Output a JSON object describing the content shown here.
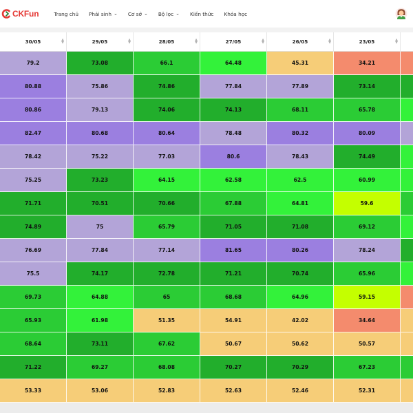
{
  "brand": {
    "name": "CKFun",
    "accent": "#e53935"
  },
  "nav": {
    "items": [
      {
        "label": "Trang chủ",
        "dropdown": false
      },
      {
        "label": "Phái sinh",
        "dropdown": true
      },
      {
        "label": "Cơ sở",
        "dropdown": true
      },
      {
        "label": "Bộ lọc",
        "dropdown": true
      },
      {
        "label": "Kiến thức",
        "dropdown": false
      },
      {
        "label": "Khóa học",
        "dropdown": false
      }
    ],
    "chevron": "⌄",
    "avatar_icon": "user-avatar-icon"
  },
  "table": {
    "columns": [
      "30/05",
      "29/05",
      "28/05",
      "27/05",
      "26/05",
      "23/05",
      ""
    ],
    "sort_icon": "⇅",
    "palette": {
      "purple": "#9b7fe0",
      "lavender": "#b3a4d8",
      "dark_green": "#22ae2c",
      "mid_green": "#2bcc35",
      "bright_green": "#33f23a",
      "lime": "#c4ff00",
      "sand": "#f6cd78",
      "salmon": "#f48b6d"
    },
    "rows": [
      {
        "values": [
          "79.2",
          "73.08",
          "66.1",
          "64.48",
          "45.31",
          "34.21",
          ""
        ],
        "colors": [
          "lavender",
          "dark_green",
          "mid_green",
          "bright_green",
          "sand",
          "salmon",
          "salmon"
        ]
      },
      {
        "values": [
          "80.88",
          "75.86",
          "74.86",
          "77.84",
          "77.89",
          "73.14",
          ""
        ],
        "colors": [
          "purple",
          "lavender",
          "dark_green",
          "lavender",
          "lavender",
          "dark_green",
          "dark_green"
        ]
      },
      {
        "values": [
          "80.86",
          "79.13",
          "74.06",
          "74.13",
          "68.11",
          "65.78",
          ""
        ],
        "colors": [
          "purple",
          "lavender",
          "dark_green",
          "dark_green",
          "mid_green",
          "mid_green",
          "bright_green"
        ]
      },
      {
        "values": [
          "82.47",
          "80.68",
          "80.64",
          "78.48",
          "80.32",
          "80.09",
          ""
        ],
        "colors": [
          "purple",
          "purple",
          "purple",
          "lavender",
          "purple",
          "purple",
          "lavender"
        ]
      },
      {
        "values": [
          "78.42",
          "75.22",
          "77.03",
          "80.6",
          "78.43",
          "74.49",
          ""
        ],
        "colors": [
          "lavender",
          "lavender",
          "lavender",
          "purple",
          "lavender",
          "dark_green",
          "bright_green"
        ]
      },
      {
        "values": [
          "75.25",
          "73.23",
          "64.15",
          "62.58",
          "62.5",
          "60.99",
          ""
        ],
        "colors": [
          "lavender",
          "dark_green",
          "bright_green",
          "bright_green",
          "bright_green",
          "bright_green",
          "bright_green"
        ]
      },
      {
        "values": [
          "71.71",
          "70.51",
          "70.66",
          "67.88",
          "64.81",
          "59.6",
          ""
        ],
        "colors": [
          "dark_green",
          "dark_green",
          "dark_green",
          "mid_green",
          "bright_green",
          "lime",
          "mid_green"
        ]
      },
      {
        "values": [
          "74.89",
          "75",
          "65.79",
          "71.05",
          "71.08",
          "69.12",
          ""
        ],
        "colors": [
          "dark_green",
          "lavender",
          "mid_green",
          "dark_green",
          "dark_green",
          "mid_green",
          "bright_green"
        ]
      },
      {
        "values": [
          "76.69",
          "77.84",
          "77.14",
          "81.65",
          "80.26",
          "78.24",
          ""
        ],
        "colors": [
          "lavender",
          "lavender",
          "lavender",
          "purple",
          "purple",
          "lavender",
          "dark_green"
        ]
      },
      {
        "values": [
          "75.5",
          "74.17",
          "72.78",
          "71.21",
          "70.74",
          "65.96",
          ""
        ],
        "colors": [
          "lavender",
          "dark_green",
          "dark_green",
          "dark_green",
          "dark_green",
          "mid_green",
          "bright_green"
        ]
      },
      {
        "values": [
          "69.73",
          "64.88",
          "65",
          "68.68",
          "64.96",
          "59.15",
          ""
        ],
        "colors": [
          "mid_green",
          "bright_green",
          "mid_green",
          "mid_green",
          "bright_green",
          "lime",
          "salmon"
        ]
      },
      {
        "values": [
          "65.93",
          "61.98",
          "51.35",
          "54.91",
          "42.02",
          "34.64",
          ""
        ],
        "colors": [
          "mid_green",
          "bright_green",
          "sand",
          "sand",
          "sand",
          "salmon",
          "sand"
        ]
      },
      {
        "values": [
          "68.64",
          "73.11",
          "67.62",
          "50.67",
          "50.62",
          "50.57",
          ""
        ],
        "colors": [
          "mid_green",
          "dark_green",
          "mid_green",
          "sand",
          "sand",
          "sand",
          "sand"
        ]
      },
      {
        "values": [
          "71.22",
          "69.27",
          "68.08",
          "70.27",
          "70.29",
          "67.23",
          ""
        ],
        "colors": [
          "dark_green",
          "mid_green",
          "mid_green",
          "dark_green",
          "dark_green",
          "mid_green",
          "mid_green"
        ]
      },
      {
        "values": [
          "53.33",
          "53.06",
          "52.83",
          "52.63",
          "52.46",
          "52.31",
          ""
        ],
        "colors": [
          "sand",
          "sand",
          "sand",
          "sand",
          "sand",
          "sand",
          "sand"
        ]
      }
    ]
  }
}
